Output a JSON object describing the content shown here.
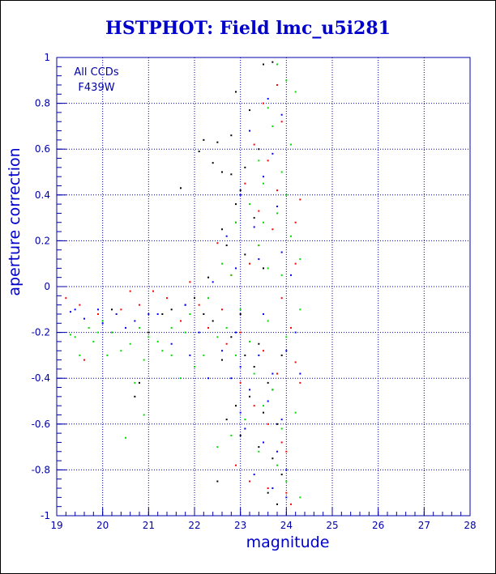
{
  "chart_data": {
    "type": "scatter",
    "title": "HSTPHOT: Field lmc_u5i281",
    "xlabel": "magnitude",
    "ylabel": "aperture correction",
    "xlim": [
      19,
      28
    ],
    "ylim": [
      -1,
      1
    ],
    "x_ticks": [
      "19",
      "20",
      "21",
      "22",
      "23",
      "24",
      "25",
      "26",
      "27",
      "28"
    ],
    "y_ticks": [
      "-1",
      "-0.8",
      "-0.6",
      "-0.4",
      "-0.2",
      "0",
      "0.2",
      "0.4",
      "0.6",
      "0.8",
      "1"
    ],
    "grid": true,
    "annotations": [
      "All CCDs",
      "F439W"
    ],
    "series_colors": [
      "#000000",
      "#ff0000",
      "#00dd00",
      "#0000ff"
    ],
    "series": [
      {
        "color": "#000000",
        "points": [
          [
            23.5,
            0.97
          ],
          [
            23.7,
            0.98
          ],
          [
            22.9,
            0.85
          ],
          [
            23.2,
            0.77
          ],
          [
            22.8,
            0.66
          ],
          [
            22.2,
            0.64
          ],
          [
            22.5,
            0.63
          ],
          [
            22.1,
            0.59
          ],
          [
            22.4,
            0.54
          ],
          [
            22.8,
            0.49
          ],
          [
            21.7,
            0.43
          ],
          [
            22.6,
            0.5
          ],
          [
            23.1,
            0.52
          ],
          [
            23.4,
            0.6
          ],
          [
            23.0,
            0.42
          ],
          [
            22.9,
            0.36
          ],
          [
            23.3,
            0.3
          ],
          [
            22.7,
            0.18
          ],
          [
            22.6,
            0.25
          ],
          [
            23.1,
            0.14
          ],
          [
            23.5,
            0.08
          ],
          [
            22.3,
            0.04
          ],
          [
            22.0,
            -0.05
          ],
          [
            21.5,
            -0.1
          ],
          [
            22.4,
            -0.15
          ],
          [
            22.8,
            -0.22
          ],
          [
            23.1,
            -0.3
          ],
          [
            23.3,
            -0.35
          ],
          [
            23.6,
            -0.42
          ],
          [
            23.2,
            -0.48
          ],
          [
            22.9,
            -0.52
          ],
          [
            23.5,
            -0.55
          ],
          [
            23.8,
            -0.6
          ],
          [
            23.0,
            -0.65
          ],
          [
            23.4,
            -0.7
          ],
          [
            23.7,
            -0.75
          ],
          [
            22.7,
            -0.58
          ],
          [
            23.9,
            -0.82
          ],
          [
            23.6,
            -0.9
          ],
          [
            23.8,
            -0.95
          ],
          [
            22.5,
            -0.85
          ],
          [
            21.3,
            -0.12
          ],
          [
            20.8,
            -0.42
          ],
          [
            20.7,
            -0.48
          ],
          [
            21.8,
            -0.08
          ],
          [
            23.0,
            -0.12
          ],
          [
            22.6,
            -0.32
          ],
          [
            23.4,
            -0.25
          ],
          [
            23.7,
            -0.45
          ],
          [
            22.2,
            -0.12
          ],
          [
            21.0,
            -0.2
          ],
          [
            20.2,
            -0.1
          ],
          [
            23.9,
            -0.3
          ]
        ]
      },
      {
        "color": "#ff0000",
        "points": [
          [
            23.8,
            0.88
          ],
          [
            23.5,
            0.8
          ],
          [
            23.9,
            0.72
          ],
          [
            23.3,
            0.62
          ],
          [
            23.6,
            0.55
          ],
          [
            23.1,
            0.45
          ],
          [
            23.8,
            0.42
          ],
          [
            24.3,
            0.38
          ],
          [
            23.4,
            0.33
          ],
          [
            22.9,
            0.28
          ],
          [
            23.7,
            0.25
          ],
          [
            22.5,
            0.19
          ],
          [
            23.2,
            0.1
          ],
          [
            22.8,
            0.05
          ],
          [
            24.2,
            0.1
          ],
          [
            21.9,
            0.02
          ],
          [
            21.4,
            -0.05
          ],
          [
            20.8,
            -0.08
          ],
          [
            20.4,
            -0.1
          ],
          [
            19.9,
            -0.12
          ],
          [
            19.5,
            -0.08
          ],
          [
            19.2,
            -0.05
          ],
          [
            22.3,
            -0.18
          ],
          [
            22.7,
            -0.25
          ],
          [
            23.0,
            -0.2
          ],
          [
            23.5,
            -0.28
          ],
          [
            23.8,
            -0.38
          ],
          [
            24.2,
            -0.33
          ],
          [
            24.3,
            -0.42
          ],
          [
            23.3,
            -0.52
          ],
          [
            23.6,
            -0.6
          ],
          [
            23.9,
            -0.68
          ],
          [
            24.0,
            -0.72
          ],
          [
            22.9,
            -0.78
          ],
          [
            23.2,
            -0.85
          ],
          [
            23.6,
            -0.88
          ],
          [
            24.0,
            -0.9
          ],
          [
            24.1,
            -0.95
          ],
          [
            19.6,
            -0.32
          ],
          [
            21.1,
            -0.02
          ],
          [
            22.1,
            -0.08
          ],
          [
            23.9,
            -0.05
          ],
          [
            24.2,
            0.28
          ],
          [
            24.1,
            -0.18
          ],
          [
            23.0,
            -0.42
          ],
          [
            21.7,
            -0.15
          ],
          [
            20.6,
            -0.02
          ],
          [
            22.6,
            -0.1
          ],
          [
            23.4,
            0.18
          ]
        ]
      },
      {
        "color": "#00dd00",
        "points": [
          [
            23.8,
            0.97
          ],
          [
            24.0,
            0.9
          ],
          [
            24.2,
            0.85
          ],
          [
            23.6,
            0.78
          ],
          [
            23.7,
            0.7
          ],
          [
            24.1,
            0.62
          ],
          [
            23.4,
            0.55
          ],
          [
            23.9,
            0.5
          ],
          [
            23.5,
            0.45
          ],
          [
            24.0,
            0.4
          ],
          [
            23.2,
            0.36
          ],
          [
            23.8,
            0.32
          ],
          [
            22.9,
            0.28
          ],
          [
            24.1,
            0.22
          ],
          [
            23.4,
            0.18
          ],
          [
            24.3,
            0.12
          ],
          [
            23.6,
            0.08
          ],
          [
            22.8,
            0.05
          ],
          [
            22.3,
            -0.05
          ],
          [
            21.9,
            -0.12
          ],
          [
            21.5,
            -0.18
          ],
          [
            21.0,
            -0.22
          ],
          [
            20.6,
            -0.25
          ],
          [
            20.2,
            -0.2
          ],
          [
            19.8,
            -0.24
          ],
          [
            19.5,
            -0.3
          ],
          [
            19.3,
            -0.21
          ],
          [
            20.9,
            -0.32
          ],
          [
            21.3,
            -0.28
          ],
          [
            22.0,
            -0.35
          ],
          [
            22.5,
            -0.22
          ],
          [
            22.9,
            -0.3
          ],
          [
            23.3,
            -0.38
          ],
          [
            23.7,
            -0.45
          ],
          [
            23.5,
            -0.52
          ],
          [
            23.1,
            -0.58
          ],
          [
            23.9,
            -0.62
          ],
          [
            24.2,
            -0.55
          ],
          [
            22.8,
            -0.65
          ],
          [
            23.4,
            -0.72
          ],
          [
            23.8,
            -0.78
          ],
          [
            24.0,
            -0.85
          ],
          [
            24.3,
            -0.92
          ],
          [
            22.5,
            -0.7
          ],
          [
            20.7,
            -0.42
          ],
          [
            21.7,
            -0.4
          ],
          [
            20.4,
            -0.28
          ],
          [
            19.7,
            -0.18
          ],
          [
            20.0,
            -0.15
          ],
          [
            21.2,
            -0.24
          ],
          [
            22.2,
            -0.3
          ],
          [
            23.0,
            -0.1
          ],
          [
            23.6,
            -0.15
          ],
          [
            24.0,
            -0.22
          ],
          [
            21.8,
            -0.2
          ],
          [
            20.1,
            -0.3
          ],
          [
            19.9,
            -0.2
          ],
          [
            21.5,
            -0.3
          ],
          [
            22.7,
            -0.18
          ],
          [
            23.2,
            -0.24
          ],
          [
            20.8,
            -0.18
          ],
          [
            19.4,
            -0.22
          ],
          [
            23.9,
            0.05
          ],
          [
            24.3,
            -0.1
          ],
          [
            22.6,
            0.1
          ],
          [
            20.5,
            -0.66
          ],
          [
            20.9,
            -0.56
          ],
          [
            23.5,
            0.28
          ]
        ]
      },
      {
        "color": "#0000ff",
        "points": [
          [
            23.6,
            0.82
          ],
          [
            23.9,
            0.75
          ],
          [
            23.2,
            0.68
          ],
          [
            23.7,
            0.58
          ],
          [
            23.5,
            0.48
          ],
          [
            23.0,
            0.4
          ],
          [
            23.8,
            0.35
          ],
          [
            23.3,
            0.26
          ],
          [
            22.7,
            0.22
          ],
          [
            23.9,
            0.15
          ],
          [
            23.4,
            0.12
          ],
          [
            22.9,
            0.08
          ],
          [
            24.1,
            0.05
          ],
          [
            22.4,
            0.02
          ],
          [
            21.8,
            -0.08
          ],
          [
            21.2,
            -0.12
          ],
          [
            20.7,
            -0.15
          ],
          [
            20.3,
            -0.12
          ],
          [
            19.9,
            -0.1
          ],
          [
            19.6,
            -0.14
          ],
          [
            19.3,
            -0.11
          ],
          [
            22.1,
            -0.2
          ],
          [
            22.6,
            -0.28
          ],
          [
            23.0,
            -0.35
          ],
          [
            23.4,
            -0.3
          ],
          [
            23.7,
            -0.38
          ],
          [
            24.0,
            -0.28
          ],
          [
            24.3,
            -0.38
          ],
          [
            23.2,
            -0.45
          ],
          [
            23.6,
            -0.5
          ],
          [
            23.9,
            -0.58
          ],
          [
            23.1,
            -0.62
          ],
          [
            23.5,
            -0.68
          ],
          [
            23.8,
            -0.72
          ],
          [
            24.0,
            -0.8
          ],
          [
            23.3,
            -0.82
          ],
          [
            23.7,
            -0.88
          ],
          [
            24.0,
            -0.92
          ],
          [
            22.8,
            -0.4
          ],
          [
            21.5,
            -0.25
          ],
          [
            20.5,
            -0.18
          ],
          [
            21.9,
            -0.3
          ],
          [
            22.9,
            -0.2
          ],
          [
            23.5,
            -0.12
          ],
          [
            24.2,
            -0.2
          ],
          [
            19.4,
            -0.1
          ],
          [
            20.0,
            -0.16
          ],
          [
            21.0,
            -0.12
          ],
          [
            22.3,
            -0.4
          ],
          [
            23.0,
            -0.55
          ]
        ]
      }
    ]
  }
}
